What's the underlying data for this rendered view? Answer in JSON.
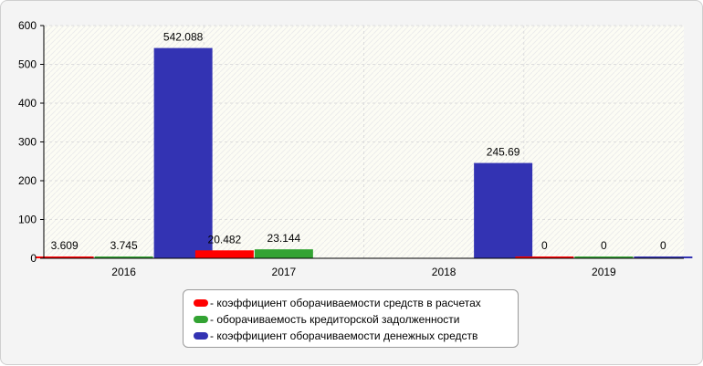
{
  "chart_data": {
    "type": "bar",
    "categories": [
      "2016",
      "2017",
      "2018",
      "2019"
    ],
    "series": [
      {
        "name": "- коэффициент оборачиваемости средств в расчетах",
        "color": "#ff0000",
        "values": [
          3.609,
          20.482,
          null,
          0
        ]
      },
      {
        "name": "- оборачиваемость кредиторской задолженности",
        "color": "#33a333",
        "values": [
          3.745,
          23.144,
          null,
          0
        ]
      },
      {
        "name": "- коэффициент оборачиваемости денежных средств",
        "color": "#3333b3",
        "values": [
          542.088,
          null,
          245.69,
          0
        ]
      }
    ],
    "data_labels": [
      [
        "3.609",
        "20.482",
        "",
        "0"
      ],
      [
        "3.745",
        "23.144",
        "",
        "0"
      ],
      [
        "542.088",
        "",
        "245.69",
        "0"
      ]
    ],
    "y_ticks": [
      "0",
      "100",
      "200",
      "300",
      "400",
      "500",
      "600"
    ],
    "ylim": [
      0,
      600
    ],
    "grid": true,
    "legend_position": "bottom-center"
  }
}
